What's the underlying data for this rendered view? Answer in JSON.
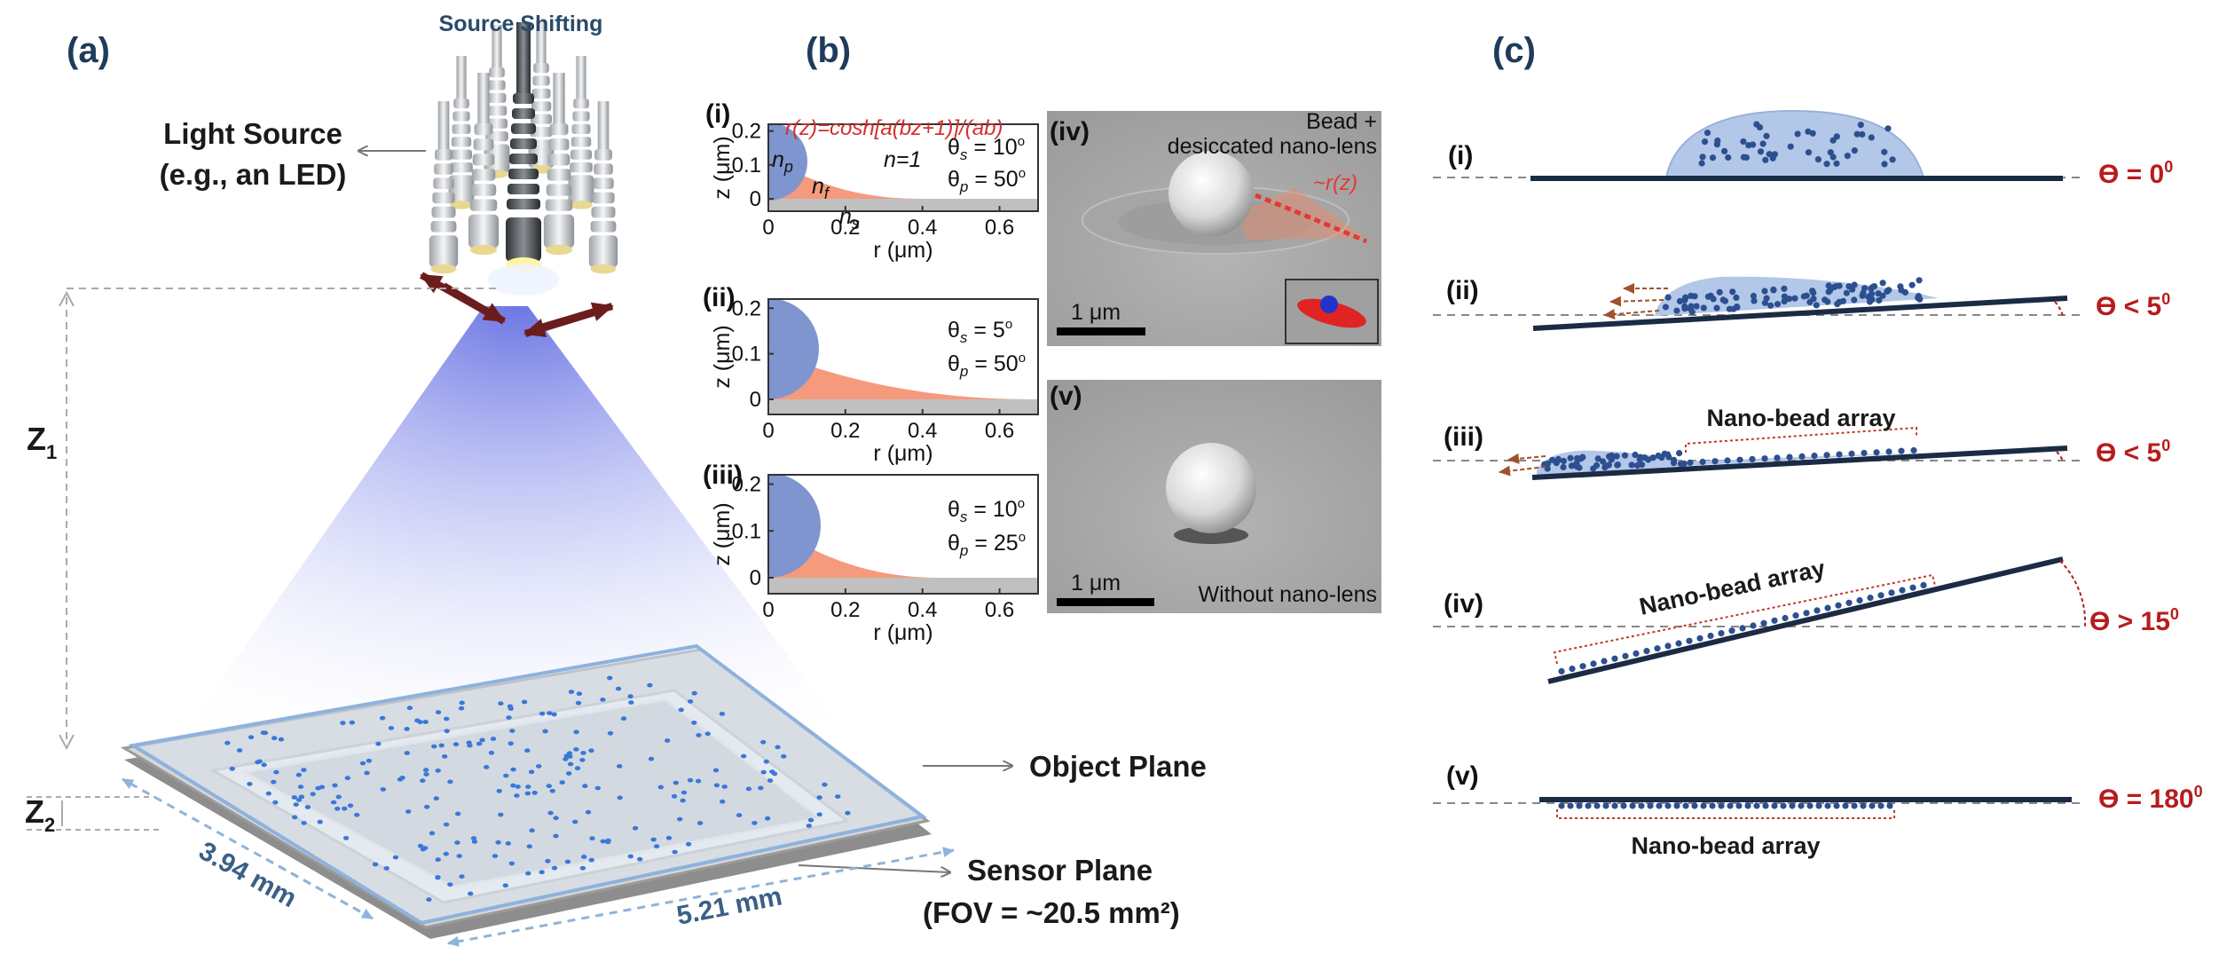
{
  "panel_a": {
    "label": "(a)",
    "source_shifting": "Source Shifting",
    "light_source_line1": "Light Source",
    "light_source_line2": "(e.g., an LED)",
    "z1_sub": "1",
    "z2_sub": "2",
    "object_plane": "Object Plane",
    "sensor_plane": "Sensor Plane",
    "fov": "(FOV = ~20.5 mm²)",
    "width": "3.94 mm",
    "length": "5.21 mm"
  },
  "panel_b": {
    "label": "(b)",
    "sub_i": "(i)",
    "sub_ii": "(ii)",
    "sub_iii": "(iii)",
    "sub_iv": "(iv)",
    "sub_v": "(v)",
    "formula": "r(z)=cosh[a(bz+1)]/(ab)",
    "np_sub": "p",
    "nf_sub": "f",
    "ns_sub": "s",
    "n_eq": "n=1",
    "s_sub": "s",
    "p_sub": "p",
    "deg": "o",
    "x_axis_label": "r (μm)",
    "y_axis_label": "z (μm)",
    "x_ticks": [
      "0",
      "0.2",
      "0.4",
      "0.6"
    ],
    "y_ticks": [
      "0",
      "0.1",
      "0.2"
    ],
    "plots": [
      {
        "theta_s": " = 10",
        "theta_p": " = 50",
        "film_reach": 0.4,
        "particle_radius": 0.1
      },
      {
        "theta_s": " = 5",
        "theta_p": " = 50",
        "film_reach": 0.7,
        "particle_radius": 0.1
      },
      {
        "theta_s": " = 10",
        "theta_p": " = 25",
        "film_reach": 0.45,
        "particle_radius": 0.1
      }
    ],
    "sem_iv_line1": "Bead +",
    "sem_iv_line2": "desiccated nano-lens",
    "rz": "~r(z)",
    "scale": "1 μm",
    "sem_v": "Without nano-lens"
  },
  "panel_c": {
    "label": "(c)",
    "array_label": "Nano-bead array",
    "stages": [
      {
        "label": "(i)",
        "angle": "ϴ = 0",
        "sup": "0"
      },
      {
        "label": "(ii)",
        "angle": "ϴ < 5",
        "sup": "0"
      },
      {
        "label": "(iii)",
        "angle": "ϴ < 5",
        "sup": "0"
      },
      {
        "label": "(iv)",
        "angle": "ϴ > 15",
        "sup": "0"
      },
      {
        "label": "(v)",
        "angle": "ϴ = 180",
        "sup": "0"
      }
    ]
  },
  "colors": {
    "panel_label": "#1f3b5c",
    "angle_text": "#b71c1c",
    "droplet": "#b3c7e8",
    "bead": "#2c4f8f",
    "substrate": "#1c2b44",
    "film": "#f59a7d",
    "particle": "#7f95cf",
    "formula": "#d32f2f",
    "object_plane_dots": "#3a78d8"
  }
}
